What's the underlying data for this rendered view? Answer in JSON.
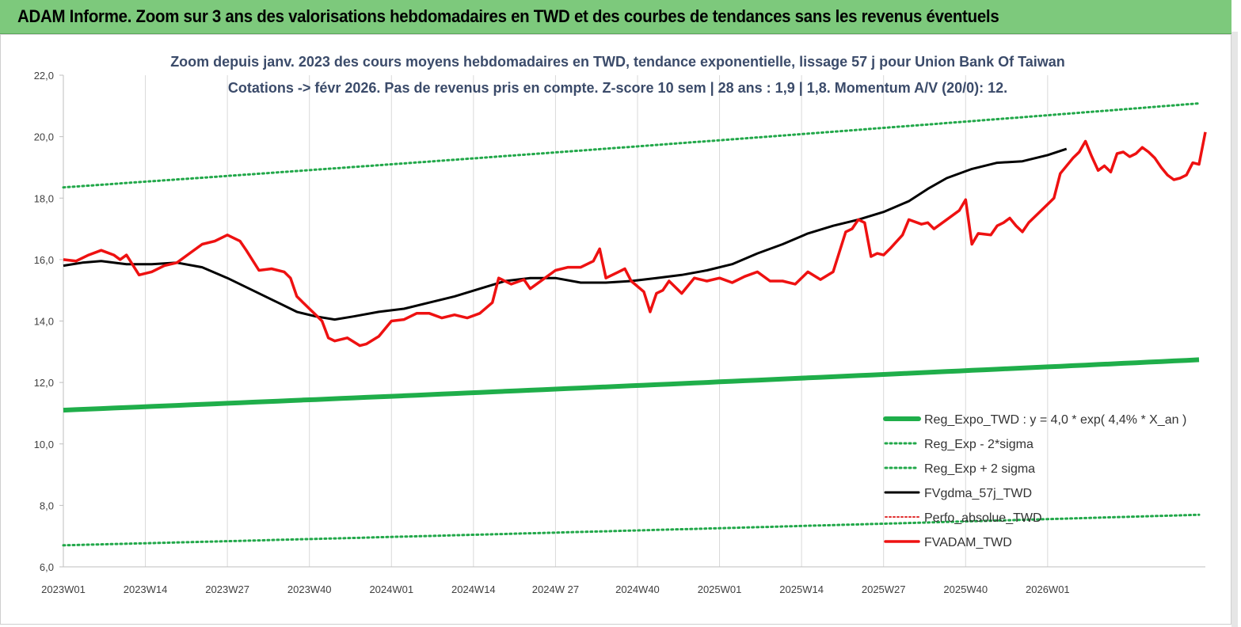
{
  "header": {
    "title": "ADAM Informe. Zoom sur 3 ans des valorisations hebdomadaires en TWD et des courbes de tendances sans les revenus éventuels"
  },
  "chart_data": {
    "type": "line",
    "subtitle_line1": "Zoom depuis janv. 2023 des cours moyens hebdomadaires en TWD, tendance exponentielle, lissage 57 j pour Union Bank Of Taiwan",
    "subtitle_line2": "Cotations -> févr 2026. Pas de revenus pris en compte. Z-score 10 sem | 28 ans : 1,9 | 1,8. Momentum A/V (20/0): 12.",
    "ylim": [
      6,
      22
    ],
    "y_ticks": [
      "22,0",
      "20,0",
      "18,0",
      "16,0",
      "14,0",
      "12,0",
      "10,0",
      "8,0",
      "6,0"
    ],
    "x_ticks": [
      "2023W01",
      "2023W14",
      "2023W27",
      "2023W40",
      "2024W01",
      "2024W14",
      "2024W 27",
      "2024W40",
      "2025W01",
      "2025W14",
      "2025W27",
      "2025W40",
      "2026W01"
    ],
    "grid": "vertical",
    "legend_position": "bottom-right",
    "colors": {
      "reg_expo": "#1fae4a",
      "sigma": "#22a84a",
      "gdma": "#000000",
      "perfo": "#e03030",
      "fvadam": "#ee1111"
    },
    "series": [
      {
        "name": "Reg_Expo_TWD : y = 4,0 * exp( 4,4% *  X_an )",
        "start": 11.1,
        "end": 12.75
      },
      {
        "name": "Reg_Exp - 2*sigma",
        "start": 6.7,
        "end": 7.7
      },
      {
        "name": "Reg_Exp + 2 sigma",
        "start": 18.35,
        "end": 21.1
      },
      {
        "name": "FVgdma_57j_TWD",
        "keypoints": [
          [
            0,
            15.8
          ],
          [
            3,
            15.9
          ],
          [
            6,
            15.95
          ],
          [
            10,
            15.85
          ],
          [
            14,
            15.85
          ],
          [
            18,
            15.9
          ],
          [
            22,
            15.75
          ],
          [
            26,
            15.4
          ],
          [
            30,
            15.0
          ],
          [
            34,
            14.6
          ],
          [
            37,
            14.3
          ],
          [
            40,
            14.15
          ],
          [
            43,
            14.05
          ],
          [
            46,
            14.15
          ],
          [
            50,
            14.3
          ],
          [
            54,
            14.4
          ],
          [
            58,
            14.6
          ],
          [
            62,
            14.8
          ],
          [
            66,
            15.05
          ],
          [
            70,
            15.3
          ],
          [
            74,
            15.4
          ],
          [
            78,
            15.4
          ],
          [
            82,
            15.25
          ],
          [
            86,
            15.25
          ],
          [
            90,
            15.3
          ],
          [
            94,
            15.4
          ],
          [
            98,
            15.5
          ],
          [
            102,
            15.65
          ],
          [
            106,
            15.85
          ],
          [
            110,
            16.2
          ],
          [
            114,
            16.5
          ],
          [
            118,
            16.85
          ],
          [
            122,
            17.1
          ],
          [
            126,
            17.3
          ],
          [
            130,
            17.55
          ],
          [
            134,
            17.9
          ],
          [
            137,
            18.3
          ],
          [
            140,
            18.65
          ],
          [
            144,
            18.95
          ],
          [
            148,
            19.15
          ],
          [
            152,
            19.2
          ],
          [
            156,
            19.4
          ],
          [
            159,
            19.6
          ]
        ]
      },
      {
        "name": "Perfo_absolue_TWD",
        "values": []
      },
      {
        "name": "FVADAM_TWD",
        "keypoints": [
          [
            0,
            16.0
          ],
          [
            2,
            15.95
          ],
          [
            4,
            16.15
          ],
          [
            6,
            16.3
          ],
          [
            8,
            16.15
          ],
          [
            9,
            16.0
          ],
          [
            10,
            16.15
          ],
          [
            12,
            15.5
          ],
          [
            14,
            15.6
          ],
          [
            16,
            15.8
          ],
          [
            18,
            15.9
          ],
          [
            20,
            16.2
          ],
          [
            22,
            16.5
          ],
          [
            24,
            16.6
          ],
          [
            26,
            16.8
          ],
          [
            28,
            16.6
          ],
          [
            29,
            16.3
          ],
          [
            31,
            15.65
          ],
          [
            33,
            15.7
          ],
          [
            35,
            15.6
          ],
          [
            36,
            15.4
          ],
          [
            37,
            14.8
          ],
          [
            38,
            14.6
          ],
          [
            39,
            14.4
          ],
          [
            40,
            14.2
          ],
          [
            41,
            14.0
          ],
          [
            42,
            13.45
          ],
          [
            43,
            13.35
          ],
          [
            45,
            13.45
          ],
          [
            47,
            13.2
          ],
          [
            48,
            13.25
          ],
          [
            50,
            13.5
          ],
          [
            52,
            14.0
          ],
          [
            54,
            14.05
          ],
          [
            56,
            14.25
          ],
          [
            58,
            14.25
          ],
          [
            60,
            14.1
          ],
          [
            62,
            14.2
          ],
          [
            64,
            14.1
          ],
          [
            66,
            14.25
          ],
          [
            68,
            14.6
          ],
          [
            69,
            15.4
          ],
          [
            71,
            15.2
          ],
          [
            73,
            15.35
          ],
          [
            74,
            15.05
          ],
          [
            76,
            15.35
          ],
          [
            78,
            15.65
          ],
          [
            80,
            15.75
          ],
          [
            82,
            15.75
          ],
          [
            84,
            15.95
          ],
          [
            85,
            16.35
          ],
          [
            86,
            15.4
          ],
          [
            88,
            15.6
          ],
          [
            89,
            15.7
          ],
          [
            90,
            15.3
          ],
          [
            92,
            14.95
          ],
          [
            93,
            14.3
          ],
          [
            94,
            14.9
          ],
          [
            95,
            15.0
          ],
          [
            96,
            15.3
          ],
          [
            98,
            14.9
          ],
          [
            100,
            15.4
          ],
          [
            102,
            15.3
          ],
          [
            104,
            15.4
          ],
          [
            106,
            15.25
          ],
          [
            108,
            15.45
          ],
          [
            110,
            15.6
          ],
          [
            112,
            15.3
          ],
          [
            114,
            15.3
          ],
          [
            116,
            15.2
          ],
          [
            118,
            15.6
          ],
          [
            120,
            15.35
          ],
          [
            122,
            15.6
          ],
          [
            124,
            16.9
          ],
          [
            125,
            17.0
          ],
          [
            126,
            17.3
          ],
          [
            127,
            17.2
          ],
          [
            128,
            16.1
          ],
          [
            129,
            16.2
          ],
          [
            130,
            16.15
          ],
          [
            131,
            16.35
          ],
          [
            133,
            16.8
          ],
          [
            134,
            17.3
          ],
          [
            136,
            17.15
          ],
          [
            137,
            17.2
          ],
          [
            138,
            17.0
          ],
          [
            140,
            17.3
          ],
          [
            142,
            17.6
          ],
          [
            143,
            17.95
          ],
          [
            144,
            16.5
          ],
          [
            145,
            16.85
          ],
          [
            147,
            16.8
          ],
          [
            148,
            17.1
          ],
          [
            149,
            17.2
          ],
          [
            150,
            17.35
          ],
          [
            151,
            17.1
          ],
          [
            152,
            16.9
          ],
          [
            153,
            17.2
          ],
          [
            155,
            17.6
          ],
          [
            157,
            18.0
          ],
          [
            158,
            18.8
          ],
          [
            160,
            19.3
          ],
          [
            161,
            19.5
          ],
          [
            162,
            19.85
          ],
          [
            163,
            19.35
          ],
          [
            164,
            18.9
          ],
          [
            165,
            19.05
          ],
          [
            166,
            18.85
          ],
          [
            167,
            19.45
          ],
          [
            168,
            19.5
          ],
          [
            169,
            19.35
          ],
          [
            170,
            19.45
          ],
          [
            171,
            19.65
          ],
          [
            172,
            19.5
          ],
          [
            173,
            19.3
          ],
          [
            174,
            19.0
          ],
          [
            175,
            18.75
          ],
          [
            176,
            18.6
          ],
          [
            177,
            18.65
          ],
          [
            178,
            18.75
          ],
          [
            179,
            19.15
          ],
          [
            180,
            19.1
          ],
          [
            181,
            20.15
          ]
        ]
      }
    ]
  }
}
